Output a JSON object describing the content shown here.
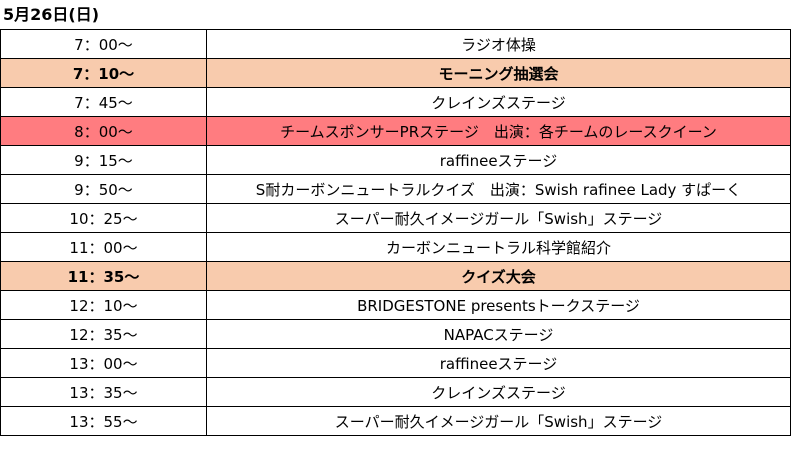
{
  "heading": "5月26日(日)",
  "colors": {
    "bold_row_bg": "#f8cbad",
    "pink_row_bg": "#ff7c80",
    "border": "#000000"
  },
  "rows": [
    {
      "time": "7：00～",
      "event": "ラジオ体操"
    },
    {
      "time": "7：10～",
      "event": "モーニング抽選会",
      "style": "peach-bold"
    },
    {
      "time": "7：45～",
      "event": "クレインズステージ"
    },
    {
      "time": "8：00～",
      "event": "チームスポンサーPRステージ　出演：各チームのレースクイーン",
      "style": "pink"
    },
    {
      "time": "9：15～",
      "event": "raffineeステージ"
    },
    {
      "time": "9：50～",
      "event": "S耐カーボンニュートラルクイズ　出演：Swish rafinee Lady すぱーく"
    },
    {
      "time": "10：25～",
      "event": "スーパー耐久イメージガール「Swish」ステージ"
    },
    {
      "time": "11：00～",
      "event": "カーボンニュートラル科学館紹介"
    },
    {
      "time": "11：35～",
      "event": "クイズ大会",
      "style": "peach-bold"
    },
    {
      "time": "12：10～",
      "event": "BRIDGESTONE presentsトークステージ"
    },
    {
      "time": "12：35～",
      "event": "NAPACステージ"
    },
    {
      "time": "13：00～",
      "event": "raffineeステージ"
    },
    {
      "time": "13：35～",
      "event": "クレインズステージ"
    },
    {
      "time": "13：55～",
      "event": "スーパー耐久イメージガール「Swish」ステージ"
    }
  ]
}
